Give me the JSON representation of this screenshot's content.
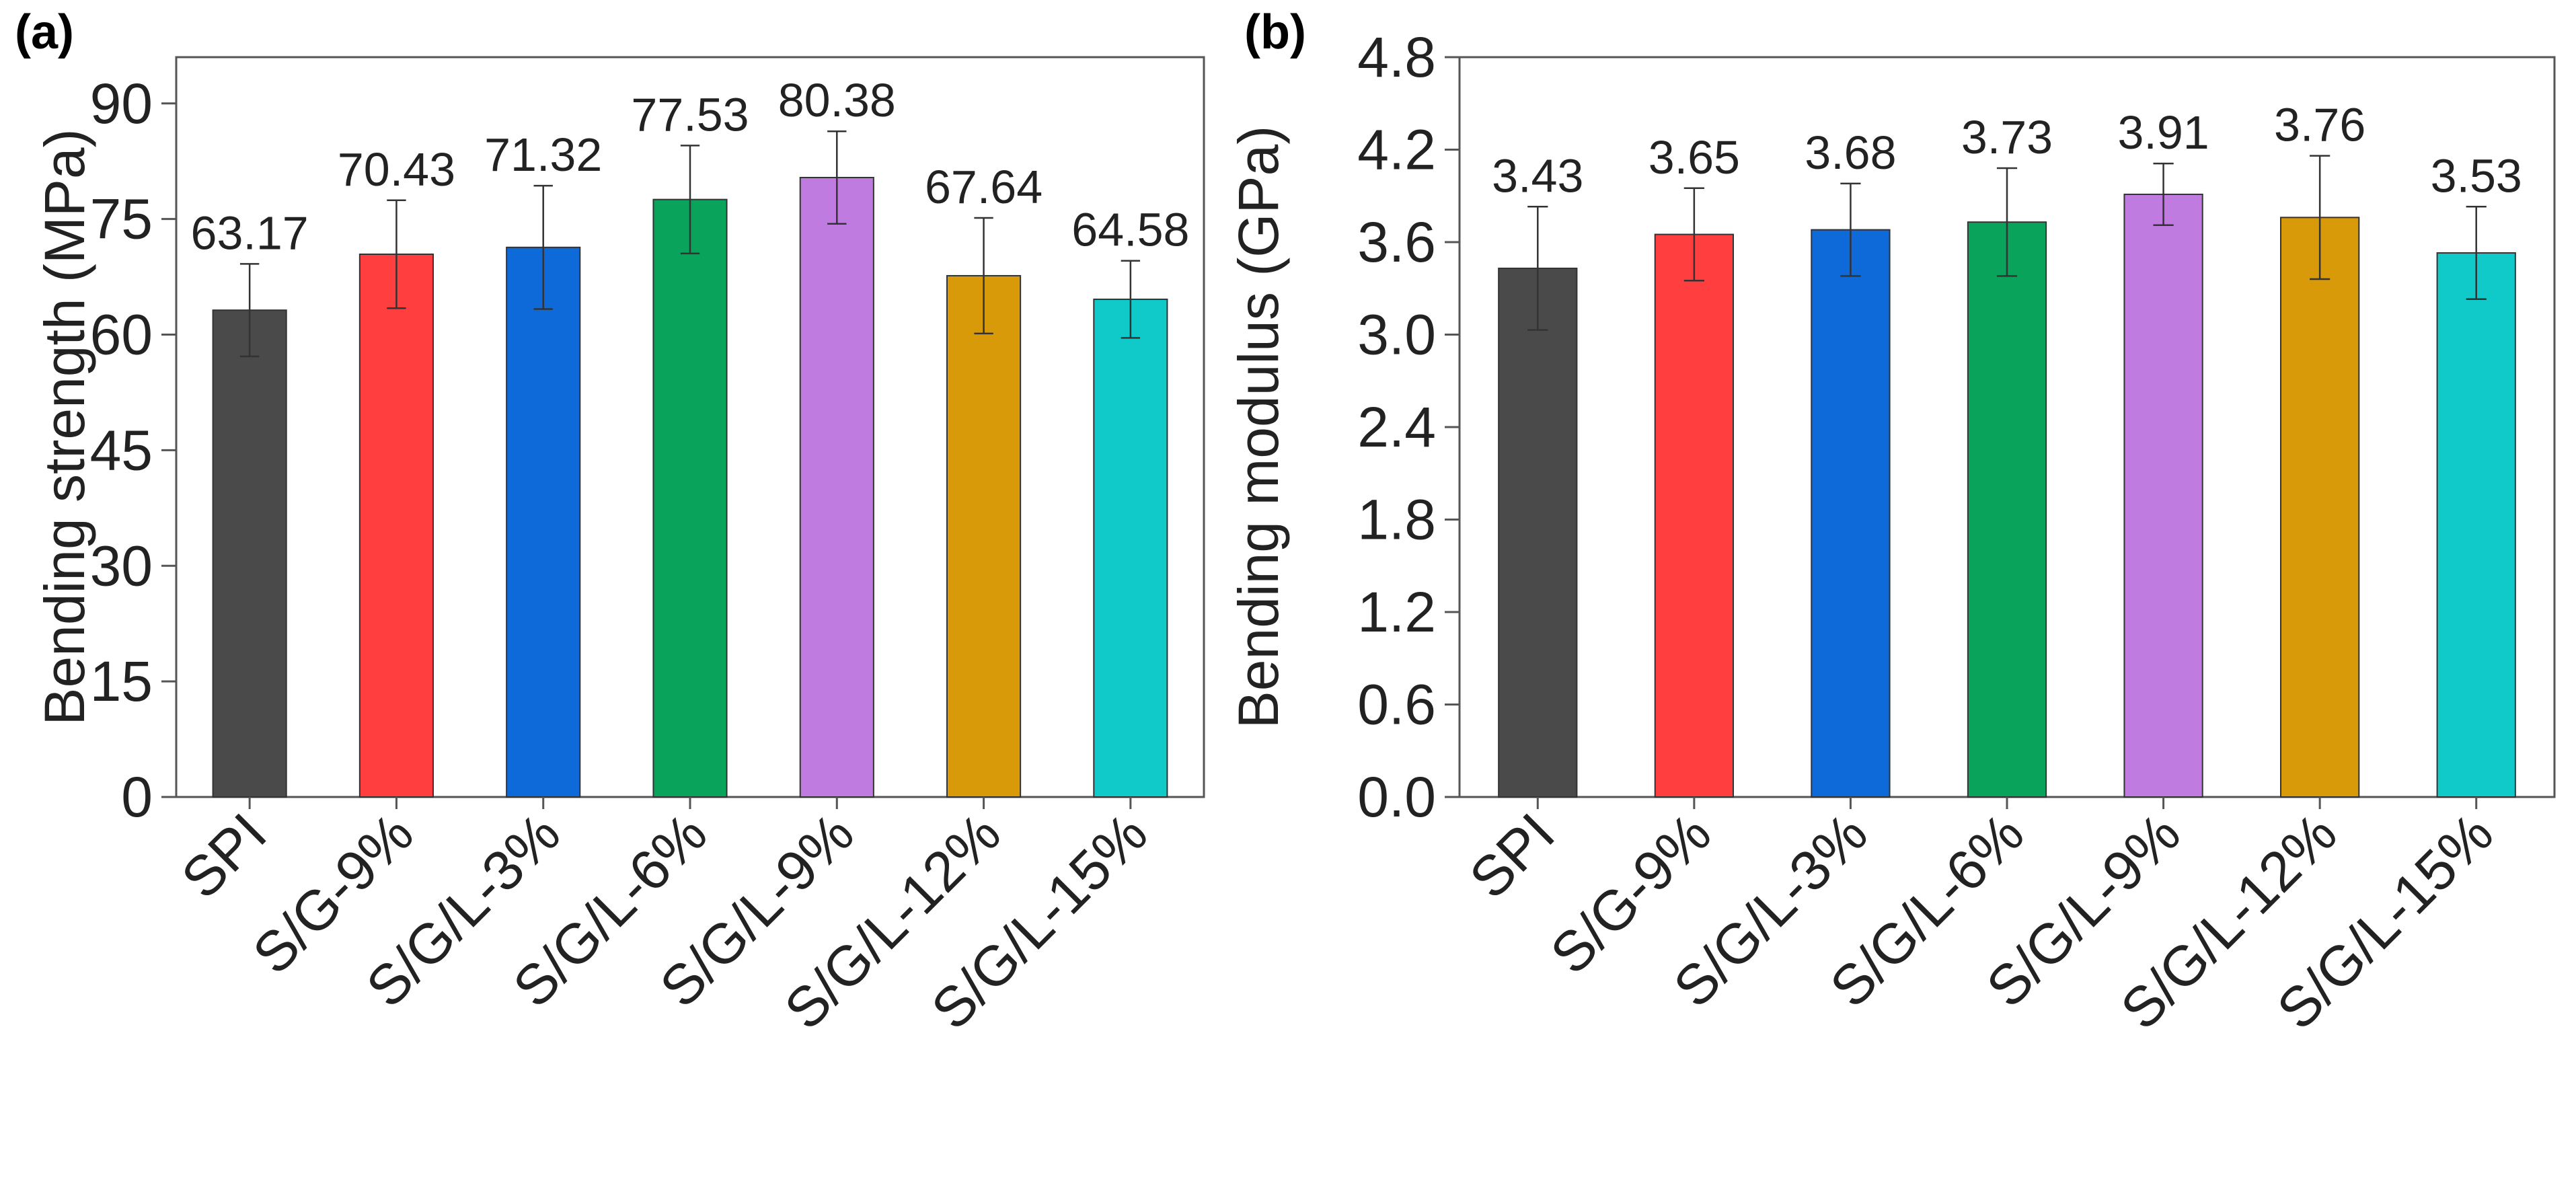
{
  "chart_data": [
    {
      "type": "bar",
      "panel": "(a)",
      "title": "",
      "xlabel": "",
      "ylabel": "Bending strength (MPa)",
      "ylim": [
        0,
        96
      ],
      "yticks": [
        0,
        15,
        30,
        45,
        60,
        75,
        90
      ],
      "ytick_labels": [
        "0",
        "15",
        "30",
        "45",
        "60",
        "75",
        "90"
      ],
      "grid": false,
      "categories": [
        "SPI",
        "S/G-9%",
        "S/G/L-3%",
        "S/G/L-6%",
        "S/G/L-9%",
        "S/G/L-12%",
        "S/G/L-15%"
      ],
      "values": [
        63.17,
        70.43,
        71.32,
        77.53,
        80.38,
        67.64,
        64.58
      ],
      "value_labels": [
        "63.17",
        "70.43",
        "71.32",
        "77.53",
        "80.38",
        "67.64",
        "64.58"
      ],
      "errors": [
        6.0,
        7.0,
        8.0,
        7.0,
        6.0,
        7.5,
        5.0
      ],
      "colors": [
        "#4a4a4a",
        "#ff3f3f",
        "#0f6ad9",
        "#0aa35c",
        "#c07be0",
        "#d99a0a",
        "#10c9c9"
      ]
    },
    {
      "type": "bar",
      "panel": "(b)",
      "title": "",
      "xlabel": "",
      "ylabel": "Bending modulus (GPa)",
      "ylim": [
        0,
        4.8
      ],
      "yticks": [
        0,
        0.6,
        1.2,
        1.8,
        2.4,
        3.0,
        3.6,
        4.2,
        4.8
      ],
      "ytick_labels": [
        "0.0",
        "0.6",
        "1.2",
        "1.8",
        "2.4",
        "3.0",
        "3.6",
        "4.2",
        "4.8"
      ],
      "grid": false,
      "categories": [
        "SPI",
        "S/G-9%",
        "S/G/L-3%",
        "S/G/L-6%",
        "S/G/L-9%",
        "S/G/L-12%",
        "S/G/L-15%"
      ],
      "values": [
        3.43,
        3.65,
        3.68,
        3.73,
        3.91,
        3.76,
        3.53
      ],
      "value_labels": [
        "3.43",
        "3.65",
        "3.68",
        "3.73",
        "3.91",
        "3.76",
        "3.53"
      ],
      "errors": [
        0.4,
        0.3,
        0.3,
        0.35,
        0.2,
        0.4,
        0.3
      ],
      "colors": [
        "#4a4a4a",
        "#ff3f3f",
        "#0f6ad9",
        "#0aa35c",
        "#c07be0",
        "#d99a0a",
        "#10c9c9"
      ]
    }
  ]
}
